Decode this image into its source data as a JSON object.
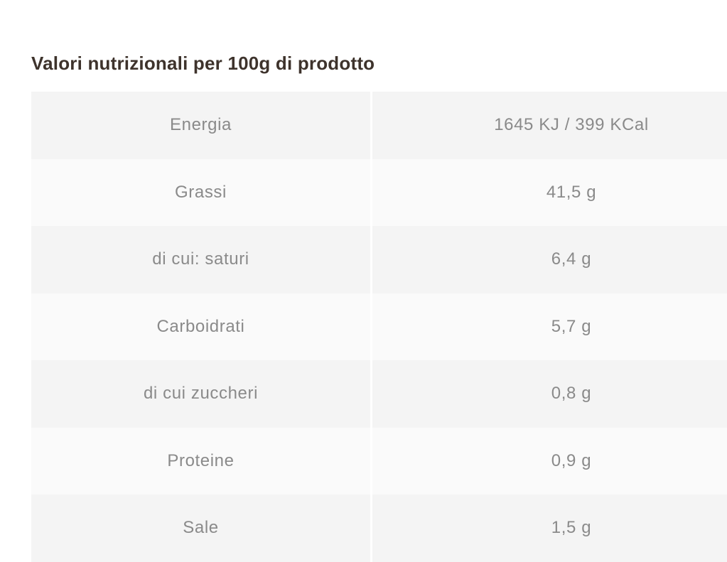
{
  "title": "Valori nutrizionali per 100g di prodotto",
  "colors": {
    "title_text": "#3e332c",
    "cell_text": "#8a8a8a",
    "row_odd_background": "#f4f4f4",
    "row_even_background": "#fafafa",
    "page_background": "#ffffff"
  },
  "table": {
    "rows": [
      {
        "label": "Energia",
        "value": "1645 KJ / 399 KCal"
      },
      {
        "label": "Grassi",
        "value": "41,5 g"
      },
      {
        "label": "di cui: saturi",
        "value": "6,4 g"
      },
      {
        "label": "Carboidrati",
        "value": "5,7 g"
      },
      {
        "label": "di cui zuccheri",
        "value": "0,8 g"
      },
      {
        "label": "Proteine",
        "value": "0,9 g"
      },
      {
        "label": "Sale",
        "value": "1,5 g"
      }
    ]
  }
}
